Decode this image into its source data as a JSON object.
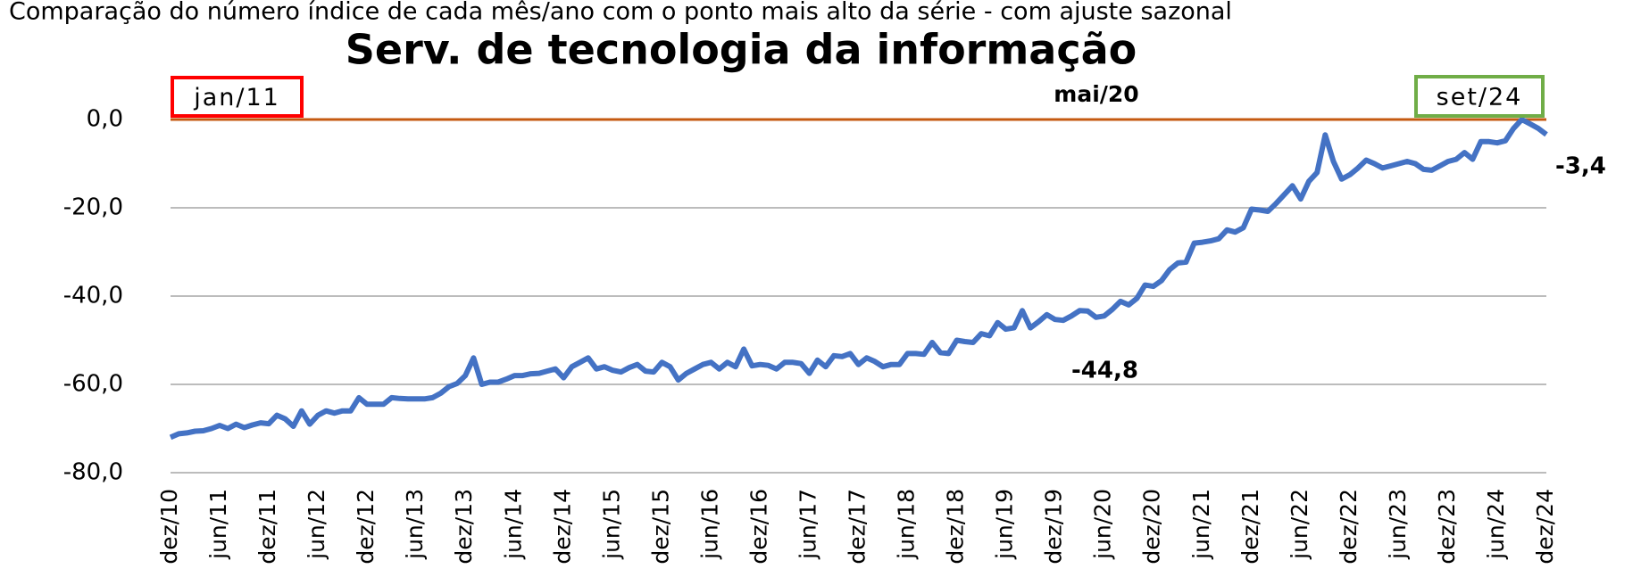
{
  "chart_data": {
    "type": "line",
    "title": "Serv. de tecnologia da informação",
    "subtitle": "Comparação do número índice de cada mês/ano com o ponto mais alto da série - com ajuste sazonal",
    "categories": [
      "dez/10",
      null,
      null,
      null,
      null,
      null,
      "jun/11",
      null,
      null,
      null,
      null,
      null,
      "dez/11",
      null,
      null,
      null,
      null,
      null,
      "jun/12",
      null,
      null,
      null,
      null,
      null,
      "dez/12",
      null,
      null,
      null,
      null,
      null,
      "jun/13",
      null,
      null,
      null,
      null,
      null,
      "dez/13",
      null,
      null,
      null,
      null,
      null,
      "jun/14",
      null,
      null,
      null,
      null,
      null,
      "dez/14",
      null,
      null,
      null,
      null,
      null,
      "jun/15",
      null,
      null,
      null,
      null,
      null,
      "dez/15",
      null,
      null,
      null,
      null,
      null,
      "jun/16",
      null,
      null,
      null,
      null,
      null,
      "dez/16",
      null,
      null,
      null,
      null,
      null,
      "jun/17",
      null,
      null,
      null,
      null,
      null,
      "dez/17",
      null,
      null,
      null,
      null,
      null,
      "jun/18",
      null,
      null,
      null,
      null,
      null,
      "dez/18",
      null,
      null,
      null,
      null,
      null,
      "jun/19",
      null,
      null,
      null,
      null,
      null,
      "dez/19",
      null,
      null,
      null,
      null,
      null,
      "jun/20",
      null,
      null,
      null,
      null,
      null,
      "dez/20",
      null,
      null,
      null,
      null,
      null,
      "jun/21",
      null,
      null,
      null,
      null,
      null,
      "dez/21",
      null,
      null,
      null,
      null,
      null,
      "jun/22",
      null,
      null,
      null,
      null,
      null,
      "dez/22",
      null,
      null,
      null,
      null,
      null,
      "jun/23",
      null,
      null,
      null,
      null,
      null,
      "dez/23",
      null,
      null,
      null,
      null,
      null,
      "jun/24",
      null,
      null,
      null,
      null,
      null,
      "dez/24"
    ],
    "series": [
      {
        "color": "#4472c4",
        "values": [
          -72,
          -71.2,
          -71,
          -70.6,
          -70.5,
          -70,
          -69.3,
          -70,
          -69,
          -69.8,
          -69.2,
          -68.7,
          -68.9,
          -67,
          -67.8,
          -69.5,
          -66,
          -69,
          -67,
          -66,
          -66.5,
          -66,
          -66,
          -63,
          -64.5,
          -64.5,
          -64.5,
          -63,
          -63.2,
          -63.3,
          -63.3,
          -63.3,
          -63,
          -62,
          -60.5,
          -59.8,
          -58,
          -54,
          -60,
          -59.5,
          -59.5,
          -58.8,
          -58,
          -58,
          -57.6,
          -57.5,
          -57,
          -56.5,
          -58.5,
          -56,
          -55,
          -54,
          -56.5,
          -56,
          -56.8,
          -57.2,
          -56.2,
          -55.5,
          -57,
          -57.2,
          -55,
          -56,
          -59,
          -57.5,
          -56.5,
          -55.5,
          -55,
          -56.5,
          -55,
          -56,
          -52,
          -55.8,
          -55.5,
          -55.7,
          -56.5,
          -55,
          -55,
          -55.3,
          -57.5,
          -54.5,
          -56,
          -53.5,
          -53.7,
          -53,
          -55.5,
          -54,
          -54.8,
          -56,
          -55.5,
          -55.5,
          -53,
          -53,
          -53.2,
          -50.5,
          -52.8,
          -53,
          -50,
          -50.3,
          -50.5,
          -48.5,
          -49,
          -46,
          -47.5,
          -47.2,
          -43.3,
          -47.2,
          -45.8,
          -44.2,
          -45.3,
          -45.5,
          -44.5,
          -43.3,
          -43.4,
          -44.8,
          -44.5,
          -43,
          -41.2,
          -42,
          -40.5,
          -37.5,
          -37.8,
          -36.5,
          -34,
          -32.5,
          -32.3,
          -28,
          -27.8,
          -27.5,
          -27,
          -25,
          -25.5,
          -24.5,
          -20.3,
          -20.5,
          -20.8,
          -19,
          -17,
          -15,
          -18,
          -14,
          -12,
          -3.5,
          -9.5,
          -13.5,
          -12.5,
          -11,
          -9.2,
          -10,
          -11,
          -10.5,
          -10,
          -9.5,
          -10,
          -11.3,
          -11.5,
          -10.5,
          -9.5,
          -9,
          -7.5,
          -9,
          -5,
          -5,
          -5.3,
          -4.8,
          -2,
          0,
          -1,
          -2,
          -3.4
        ],
        "value_labels": [
          null,
          null,
          null,
          null,
          null,
          null,
          null,
          null,
          null,
          null,
          null,
          null,
          null,
          null,
          null,
          null,
          null,
          null,
          null,
          null,
          null,
          null,
          null,
          null,
          null,
          null,
          null,
          null,
          null,
          null,
          null,
          null,
          null,
          null,
          null,
          null,
          null,
          null,
          null,
          null,
          null,
          null,
          null,
          null,
          null,
          null,
          null,
          null,
          null,
          null,
          null,
          null,
          null,
          null,
          null,
          null,
          null,
          null,
          null,
          null,
          null,
          null,
          null,
          null,
          null,
          null,
          null,
          null,
          null,
          null,
          null,
          null,
          null,
          null,
          null,
          null,
          null,
          null,
          null,
          null,
          null,
          null,
          null,
          null,
          null,
          null,
          null,
          null,
          null,
          null,
          null,
          null,
          null,
          null,
          null,
          null,
          null,
          null,
          null,
          null,
          null,
          null,
          null,
          null,
          null,
          null,
          null,
          null,
          null,
          null,
          null,
          null,
          null,
          "-44,8",
          null,
          null,
          null,
          null,
          null,
          null,
          null,
          null,
          null,
          null,
          null,
          null,
          null,
          null,
          null,
          null,
          null,
          null,
          null,
          null,
          null,
          null,
          null,
          null,
          null,
          null,
          null,
          null,
          null,
          null,
          null,
          null,
          null,
          null,
          null,
          null,
          null,
          null,
          null,
          null,
          null,
          null,
          null,
          null,
          null,
          null,
          null,
          null,
          null,
          null,
          null,
          null,
          null,
          null,
          "-3,4"
        ],
        "label_color": "#ff0000"
      }
    ],
    "ylim": [
      -80,
      0
    ],
    "yticks": [
      {
        "value": -80,
        "label": "-80,0"
      },
      {
        "value": -60,
        "label": "-60,0"
      },
      {
        "value": -40,
        "label": "-40,0"
      },
      {
        "value": -20,
        "label": "-20,0"
      },
      {
        "value": 0,
        "label": "0,0"
      }
    ],
    "grid": true,
    "zero_line_color": "#c55a11",
    "annotations": [
      {
        "text": "jan/11",
        "border": "#ff0000"
      },
      {
        "text": "mai/20"
      },
      {
        "text": "set/24",
        "border": "#70ad47"
      }
    ]
  }
}
